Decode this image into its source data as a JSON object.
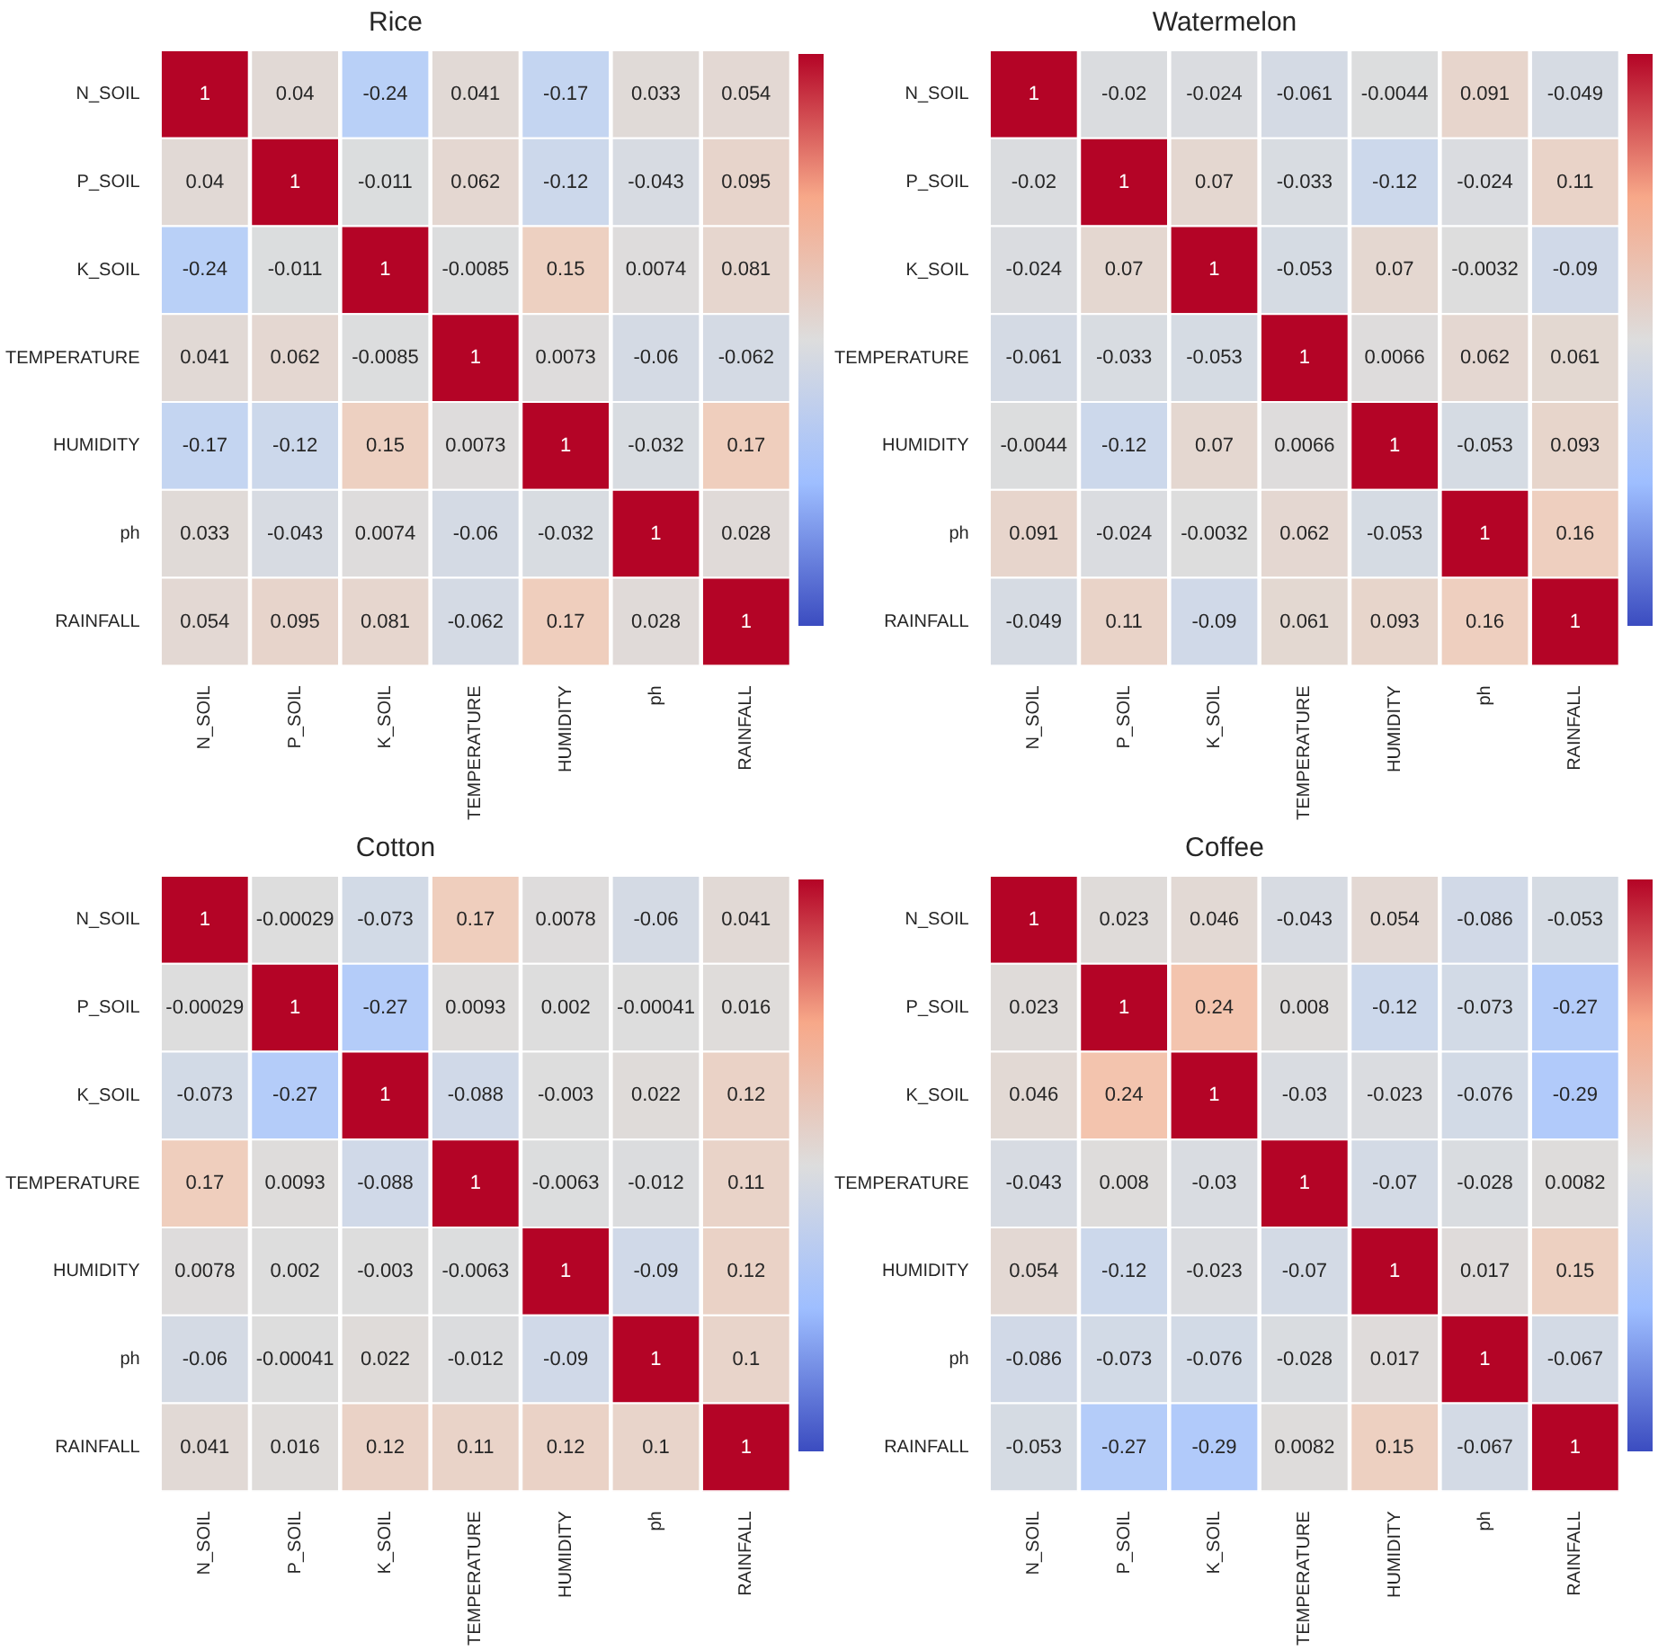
{
  "chart_data": [
    {
      "type": "heatmap",
      "title": "Rice",
      "data_labels": true,
      "categories": [
        "N_SOIL",
        "P_SOIL",
        "K_SOIL",
        "TEMPERATURE",
        "HUMIDITY",
        "ph",
        "RAINFALL"
      ],
      "y_categories": [
        "N_SOIL",
        "P_SOIL",
        "K_SOIL",
        "TEMPERATURE",
        "HUMIDITY",
        "ph",
        "RAINFALL"
      ],
      "cells": [
        [
          1,
          0.04,
          -0.24,
          0.041,
          -0.17,
          0.033,
          0.054
        ],
        [
          0.04,
          1,
          -0.011,
          0.062,
          -0.12,
          -0.043,
          0.095
        ],
        [
          -0.24,
          -0.011,
          1,
          -0.0085,
          0.15,
          0.0074,
          0.081
        ],
        [
          0.041,
          0.062,
          -0.0085,
          1,
          0.0073,
          -0.06,
          -0.062
        ],
        [
          -0.17,
          -0.12,
          0.15,
          0.0073,
          1,
          -0.032,
          0.17
        ],
        [
          0.033,
          -0.043,
          0.0074,
          -0.06,
          -0.032,
          1,
          0.028
        ],
        [
          0.054,
          0.095,
          0.081,
          -0.062,
          0.17,
          0.028,
          1
        ]
      ]
    },
    {
      "type": "heatmap",
      "title": "Watermelon",
      "data_labels": true,
      "categories": [
        "N_SOIL",
        "P_SOIL",
        "K_SOIL",
        "TEMPERATURE",
        "HUMIDITY",
        "ph",
        "RAINFALL"
      ],
      "y_categories": [
        "N_SOIL",
        "P_SOIL",
        "K_SOIL",
        "TEMPERATURE",
        "HUMIDITY",
        "ph",
        "RAINFALL"
      ],
      "cells": [
        [
          1,
          -0.02,
          -0.024,
          -0.061,
          -0.0044,
          0.091,
          -0.049
        ],
        [
          -0.02,
          1,
          0.07,
          -0.033,
          -0.12,
          -0.024,
          0.11
        ],
        [
          -0.024,
          0.07,
          1,
          -0.053,
          0.07,
          -0.0032,
          -0.09
        ],
        [
          -0.061,
          -0.033,
          -0.053,
          1,
          0.0066,
          0.062,
          0.061
        ],
        [
          -0.0044,
          -0.12,
          0.07,
          0.0066,
          1,
          -0.053,
          0.093
        ],
        [
          0.091,
          -0.024,
          -0.0032,
          0.062,
          -0.053,
          1,
          0.16
        ],
        [
          -0.049,
          0.11,
          -0.09,
          0.061,
          0.093,
          0.16,
          1
        ]
      ]
    },
    {
      "type": "heatmap",
      "title": "Cotton",
      "data_labels": true,
      "categories": [
        "N_SOIL",
        "P_SOIL",
        "K_SOIL",
        "TEMPERATURE",
        "HUMIDITY",
        "ph",
        "RAINFALL"
      ],
      "y_categories": [
        "N_SOIL",
        "P_SOIL",
        "K_SOIL",
        "TEMPERATURE",
        "HUMIDITY",
        "ph",
        "RAINFALL"
      ],
      "cells": [
        [
          1,
          -0.00029,
          -0.073,
          0.17,
          0.0078,
          -0.06,
          0.041
        ],
        [
          -0.00029,
          1,
          -0.27,
          0.0093,
          0.002,
          -0.00041,
          0.016
        ],
        [
          -0.073,
          -0.27,
          1,
          -0.088,
          -0.003,
          0.022,
          0.12
        ],
        [
          0.17,
          0.0093,
          -0.088,
          1,
          -0.0063,
          -0.012,
          0.11
        ],
        [
          0.0078,
          0.002,
          -0.003,
          -0.0063,
          1,
          -0.09,
          0.12
        ],
        [
          -0.06,
          -0.00041,
          0.022,
          -0.012,
          -0.09,
          1,
          0.1
        ],
        [
          0.041,
          0.016,
          0.12,
          0.11,
          0.12,
          0.1,
          1
        ]
      ]
    },
    {
      "type": "heatmap",
      "title": "Coffee",
      "data_labels": true,
      "categories": [
        "N_SOIL",
        "P_SOIL",
        "K_SOIL",
        "TEMPERATURE",
        "HUMIDITY",
        "ph",
        "RAINFALL"
      ],
      "y_categories": [
        "N_SOIL",
        "P_SOIL",
        "K_SOIL",
        "TEMPERATURE",
        "HUMIDITY",
        "ph",
        "RAINFALL"
      ],
      "cells": [
        [
          1,
          0.023,
          0.046,
          -0.043,
          0.054,
          -0.086,
          -0.053
        ],
        [
          0.023,
          1,
          0.24,
          0.008,
          -0.12,
          -0.073,
          -0.27
        ],
        [
          0.046,
          0.24,
          1,
          -0.03,
          -0.023,
          -0.076,
          -0.29
        ],
        [
          -0.043,
          0.008,
          -0.03,
          1,
          -0.07,
          -0.028,
          0.0082
        ],
        [
          0.054,
          -0.12,
          -0.023,
          -0.07,
          1,
          0.017,
          0.15
        ],
        [
          -0.086,
          -0.073,
          -0.076,
          -0.028,
          0.017,
          1,
          -0.067
        ],
        [
          -0.053,
          -0.27,
          -0.29,
          0.0082,
          0.15,
          -0.067,
          1
        ]
      ]
    }
  ]
}
